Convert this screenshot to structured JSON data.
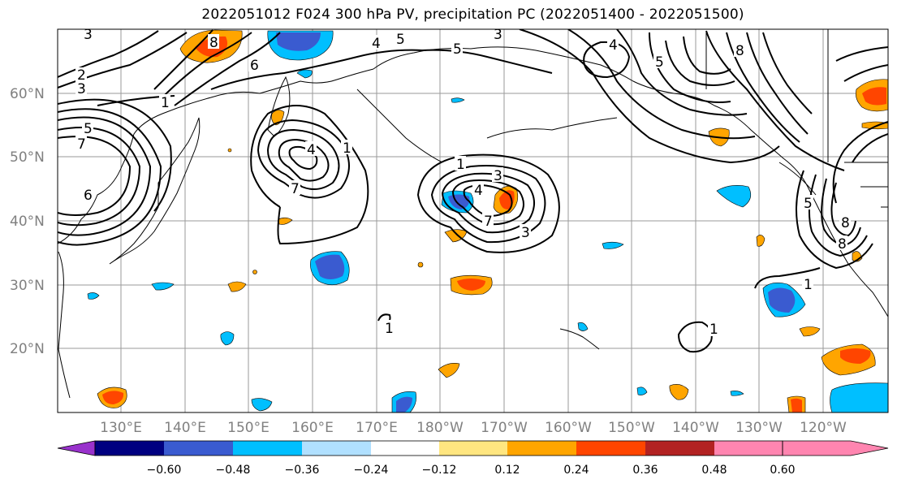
{
  "title": "2022051012 F024 300 hPa PV, precipitation PC (2022051400 - 2022051500)",
  "lat_labels": [
    "60°N",
    "50°N",
    "40°N",
    "30°N",
    "20°N"
  ],
  "lon_labels": [
    "130°E",
    "140°E",
    "150°E",
    "160°E",
    "170°E",
    "180°W",
    "170°W",
    "160°W",
    "150°W",
    "140°W",
    "130°W",
    "120°W"
  ],
  "colorbar": {
    "ticks": [
      "−0.60",
      "−0.48",
      "−0.36",
      "−0.24",
      "−0.12",
      "0.12",
      "0.24",
      "0.36",
      "0.48",
      "0.60"
    ],
    "colors": [
      "#9932cc",
      "#000080",
      "#3a5bd0",
      "#00bfff",
      "#b0e0ff",
      "#ffffff",
      "#ffe680",
      "#ffa500",
      "#ff4500",
      "#b22222",
      "#ff85b0"
    ]
  },
  "contour_labels": [
    "3",
    "2",
    "3",
    "5",
    "7",
    "6",
    "1",
    "6",
    "8",
    "4",
    "5",
    "5",
    "3",
    "4",
    "5",
    "8",
    "8",
    "5",
    "1",
    "4",
    "1",
    "7",
    "3",
    "4",
    "3",
    "7",
    "1",
    "1",
    "1",
    "8"
  ]
}
